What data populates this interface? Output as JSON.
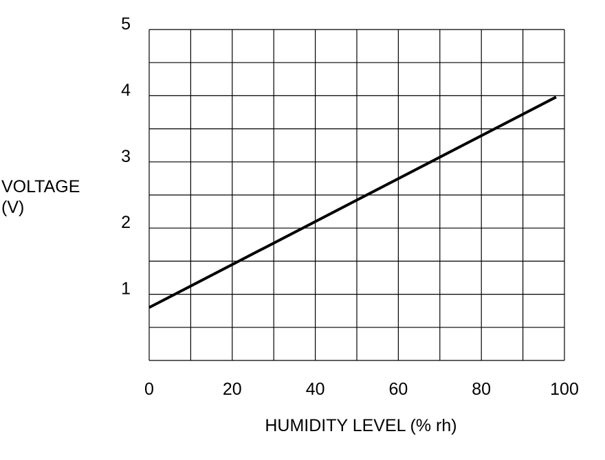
{
  "chart_data": {
    "type": "line",
    "xlabel": "HUMIDITY LEVEL (% rh)",
    "ylabel_lines": [
      "VOLTAGE",
      "(V)"
    ],
    "xlim": [
      0,
      100
    ],
    "ylim": [
      0,
      5
    ],
    "x_ticks": [
      0,
      20,
      40,
      60,
      80,
      100
    ],
    "y_ticks": [
      1,
      2,
      3,
      4,
      5
    ],
    "x_gridlines": [
      0,
      10,
      20,
      30,
      40,
      50,
      60,
      70,
      80,
      90,
      100
    ],
    "y_gridlines": [
      0,
      0.5,
      1,
      1.5,
      2,
      2.5,
      3,
      3.5,
      4,
      4.5,
      5
    ],
    "grid": true,
    "series": [
      {
        "x": [
          0,
          98
        ],
        "y": [
          0.8,
          3.98
        ],
        "color": "#000000"
      }
    ]
  }
}
